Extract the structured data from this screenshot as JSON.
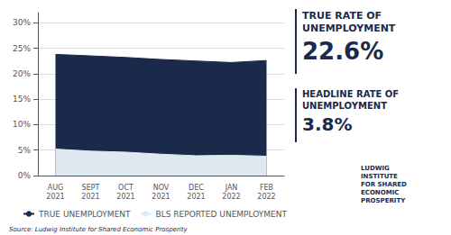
{
  "chart_data": {
    "type": "area",
    "categories": [
      "AUG\n2021",
      "SEPT\n2021",
      "OCT\n2021",
      "NOV\n2021",
      "DEC\n2021",
      "JAN\n2022",
      "FEB\n2022"
    ],
    "series": [
      {
        "name": "TRUE UNEMPLOYMENT",
        "color": "#1b2a4a",
        "values": [
          23.8,
          23.5,
          23.2,
          22.8,
          22.5,
          22.2,
          22.6
        ]
      },
      {
        "name": "BLS REPORTED UNEMPLOYMENT",
        "color": "#dde8f0",
        "values": [
          5.2,
          4.8,
          4.6,
          4.2,
          3.9,
          4.0,
          3.8
        ]
      }
    ],
    "ylim": [
      0,
      32
    ],
    "yticks": [
      {
        "value": 0,
        "label": "0%"
      },
      {
        "value": 5,
        "label": "5%"
      },
      {
        "value": 10,
        "label": "10%"
      },
      {
        "value": 15,
        "label": "15%"
      },
      {
        "value": 20,
        "label": "20%"
      },
      {
        "value": 25,
        "label": "25%"
      },
      {
        "value": 30,
        "label": "30%"
      }
    ],
    "grid": true,
    "legend": "lower left",
    "annotations": [
      "TRUE RATE OF\nUNEMPLOYMENT",
      "22.6%",
      "HEADLINE RATE OF\nUNEMPLOYMENT",
      "3.8%",
      "LUDWIG\nINSTITUTE\nFOR SHARED\nECONOMIC\nPROSPERITY",
      "Source: Ludwig Institute for Shared Economic Prosperity"
    ]
  }
}
